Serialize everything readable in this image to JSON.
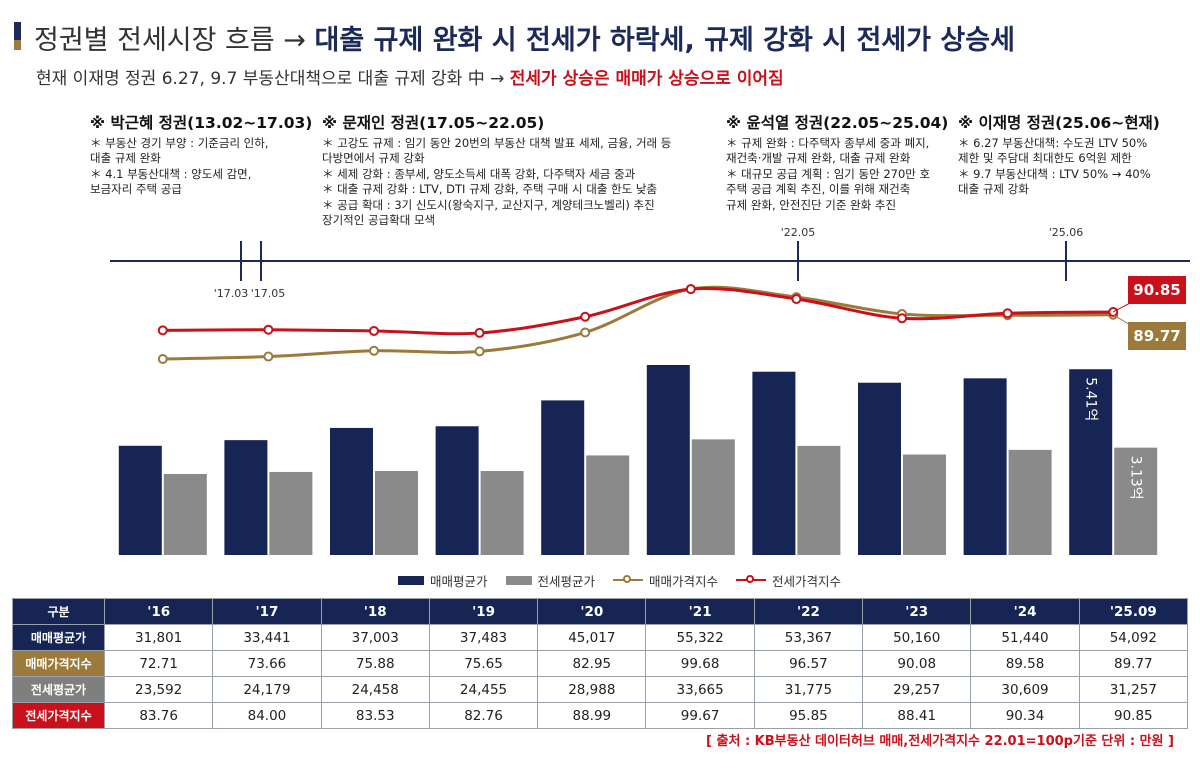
{
  "header": {
    "title_prefix": "정권별 전세시장 흐름 →",
    "title_main": "대출 규제 완화 시 전세가 하락세, 규제 강화 시 전세가 상승세",
    "subtitle_prefix": "현재 이재명 정권 6.27, 9.7 부동산대책으로 대출 규제 강화 中 →",
    "subtitle_highlight": "전세가 상승은 매매가 상승으로 이어짐"
  },
  "governments": [
    {
      "name": "※ 박근혜 정권(13.02~17.03)",
      "lines": [
        "＊ 부동산 경기 부양 : 기준금리 인하,",
        "   대출 규제 완화",
        "＊ 4.1 부동산대책 : 양도세 감면,",
        "   보금자리 주택 공급"
      ]
    },
    {
      "name": "※ 문재인 정권(17.05~22.05)",
      "lines": [
        "＊ 고강도 규제 : 임기 동안 20번의 부동산 대책 발표 세제, 금융, 거래 등",
        "   다방면에서 규제 강화",
        "＊ 세제 강화 : 종부세, 양도소득세 대폭 강화, 다주택자 세금 중과",
        "＊ 대출 규제 강화 : LTV, DTI 규제 강화, 주택 구매 시 대출 한도 낮춤",
        "＊ 공급 확대 : 3기 신도시(왕숙지구, 교산지구, 계양테크노벨리) 추진",
        "   장기적인 공급확대 모색"
      ]
    },
    {
      "name": "※ 윤석열 정권(22.05~25.04)",
      "lines": [
        "＊ 규제 완화 : 다주택자 종부세 중과 폐지,",
        "   재건축·개발 규제 완화, 대출 규제 완화",
        "＊ 대규모 공급 계획 : 임기 동안 270만 호",
        "   주택 공급 계획 추진, 이를 위해 재건축",
        "   규제 완화, 안전진단 기준 완화 추진"
      ]
    },
    {
      "name": "※ 이재명 정권(25.06~현재)",
      "lines": [
        "＊ 6.27 부동산대책: 수도권 LTV 50%",
        "   제한 및 주담대 최대한도 6억원 제한",
        "＊ 9.7 부동산대책 : LTV 50% → 40%",
        "   대출 규제 강화"
      ]
    }
  ],
  "timeline": {
    "markers": [
      "'17.03",
      "'17.05",
      "'22.05",
      "'25.06"
    ]
  },
  "chart_data": {
    "type": "bar",
    "categories": [
      "'16",
      "'17",
      "'18",
      "'19",
      "'20",
      "'21",
      "'22",
      "'23",
      "'24",
      "'25.09"
    ],
    "series": [
      {
        "name": "매매평균가",
        "type": "bar",
        "color": "#172554",
        "values": [
          31801,
          33441,
          37003,
          37483,
          45017,
          55322,
          53367,
          50160,
          51440,
          54092
        ]
      },
      {
        "name": "전세평균가",
        "type": "bar",
        "color": "#8a8a8a",
        "values": [
          23592,
          24179,
          24458,
          24455,
          28988,
          33665,
          31775,
          29257,
          30609,
          31257
        ]
      },
      {
        "name": "매매가격지수",
        "type": "line",
        "color": "#9c7a3c",
        "values": [
          72.71,
          73.66,
          75.88,
          75.65,
          82.95,
          99.68,
          96.57,
          90.08,
          89.58,
          89.77
        ]
      },
      {
        "name": "전세가격지수",
        "type": "line",
        "color": "#c9101b",
        "values": [
          83.76,
          84.0,
          83.53,
          82.76,
          88.99,
          99.67,
          95.85,
          88.41,
          90.34,
          90.85
        ]
      }
    ],
    "bar_labels": {
      "sale_last": "5.41억",
      "jeonse_last": "3.13억"
    },
    "line_labels": {
      "jeonse_last": "90.85",
      "sale_last": "89.77"
    },
    "legend_position": "bottom"
  },
  "table": {
    "corner": "구분",
    "columns": [
      "'16",
      "'17",
      "'18",
      "'19",
      "'20",
      "'21",
      "'22",
      "'23",
      "'24",
      "'25.09"
    ],
    "rows": [
      {
        "label": "매매평균가",
        "color": "#172554",
        "values": [
          "31,801",
          "33,441",
          "37,003",
          "37,483",
          "45,017",
          "55,322",
          "53,367",
          "50,160",
          "51,440",
          "54,092"
        ]
      },
      {
        "label": "매매가격지수",
        "color": "#9c7a3c",
        "values": [
          "72.71",
          "73.66",
          "75.88",
          "75.65",
          "82.95",
          "99.68",
          "96.57",
          "90.08",
          "89.58",
          "89.77"
        ]
      },
      {
        "label": "전세평균가",
        "color": "#7f7f7f",
        "values": [
          "23,592",
          "24,179",
          "24,458",
          "24,455",
          "28,988",
          "33,665",
          "31,775",
          "29,257",
          "30,609",
          "31,257"
        ]
      },
      {
        "label": "전세가격지수",
        "color": "#c9101b",
        "values": [
          "83.76",
          "84.00",
          "83.53",
          "82.76",
          "88.99",
          "99.67",
          "95.85",
          "88.41",
          "90.34",
          "90.85"
        ]
      }
    ]
  },
  "source": "[ 출처 : KB부동산 데이터허브 매매,전세가격지수 22.01=100p기준  단위 : 만원 ]"
}
